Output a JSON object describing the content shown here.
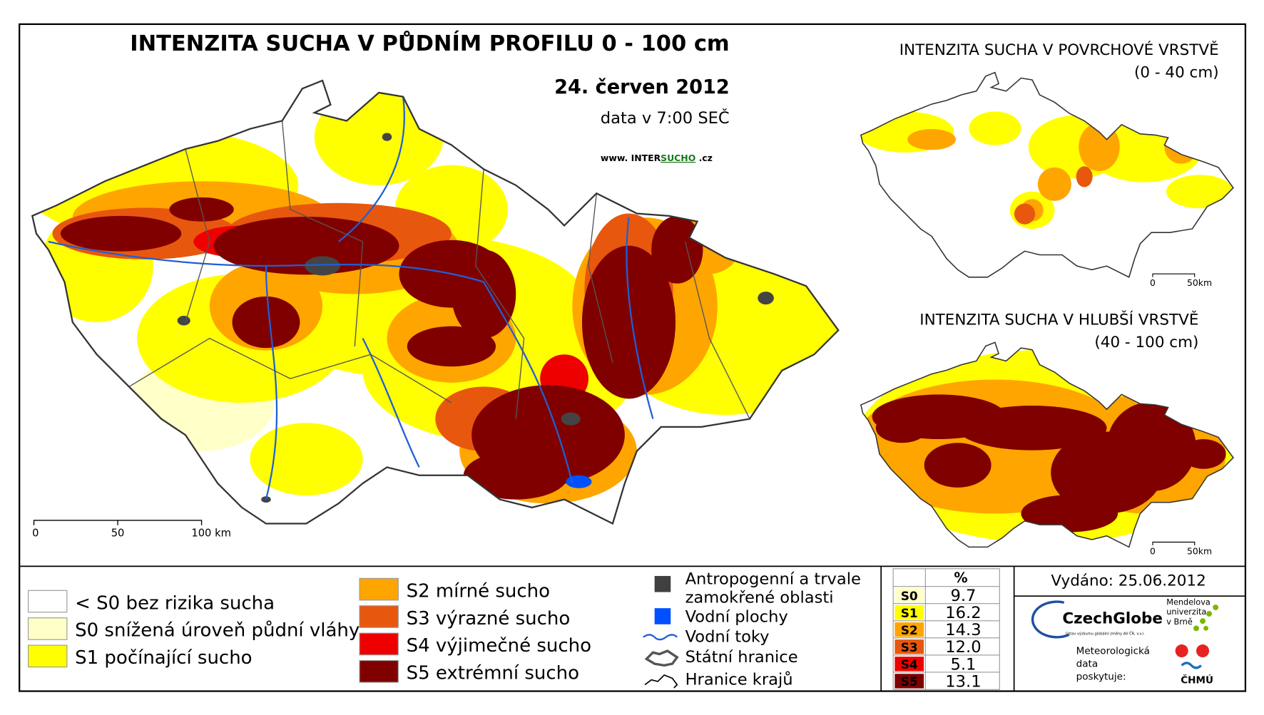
{
  "title": "INTENZITA SUCHA V PŮDNÍM PROFILU 0 - 100 cm",
  "date": "24. červen 2012",
  "data_time": "data v 7:00 SEČ",
  "website": [
    "www. INTER",
    "SUCHO",
    " .cz"
  ],
  "main_scale": [
    "0",
    "50",
    "100 km"
  ],
  "insets": [
    {
      "title": "INTENZITA SUCHA V POVRCHOVÉ VRSTVĚ",
      "subtitle": "(0 - 40 cm)",
      "scale": [
        "0",
        "50km"
      ]
    },
    {
      "title": "INTENZITA SUCHA V HLUBŠÍ VRSTVĚ",
      "subtitle": "(40 - 100 cm)",
      "scale": [
        "0",
        "50km"
      ]
    }
  ],
  "legend": {
    "classes": [
      {
        "label": "< S0 bez rizika sucha",
        "color": "#ffffff"
      },
      {
        "label": "S0 snížená úroveň půdní vláhy",
        "color": "#ffffc8"
      },
      {
        "label": "S1 počínající sucho",
        "color": "#ffff00"
      },
      {
        "label": "S2 mírné sucho",
        "color": "#ffa500"
      },
      {
        "label": "S3 výrazné sucho",
        "color": "#e8570e"
      },
      {
        "label": "S4 výjimečné sucho",
        "color": "#ee0000"
      },
      {
        "label": "S5 extrémní sucho",
        "color": "#800000"
      }
    ],
    "symbols": [
      [
        "Antropogenní a trvale",
        "zamokřené oblasti"
      ],
      [
        "Vodní plochy"
      ],
      [
        "Vodní toky"
      ],
      [
        "Státní hranice"
      ],
      [
        "Hranice krajů"
      ]
    ]
  },
  "table": {
    "header": "%",
    "rows": [
      {
        "class": "S0",
        "value": 9.7,
        "color": "#ffffc8"
      },
      {
        "class": "S1",
        "value": 16.2,
        "color": "#ffff00"
      },
      {
        "class": "S2",
        "value": 14.3,
        "color": "#ffa500"
      },
      {
        "class": "S3",
        "value": 12.0,
        "value_label": "12.0",
        "color": "#e8570e"
      },
      {
        "class": "S4",
        "value": 5.1,
        "color": "#ee0000"
      },
      {
        "class": "S5",
        "value": 13.1,
        "color": "#800000"
      }
    ]
  },
  "issued": "Vydáno: 25.06.2012",
  "logos": {
    "czechglobe": "CzechGlobe",
    "czechglobe_sub": "Ústav výzkumu globální změny AV ČR, v.v.i.",
    "mendel": [
      "Mendelova",
      "univerzita",
      "v Brně"
    ],
    "provided": [
      "Meteorologická",
      "data",
      "poskytuje:"
    ],
    "chmu": "ČHMÚ"
  }
}
